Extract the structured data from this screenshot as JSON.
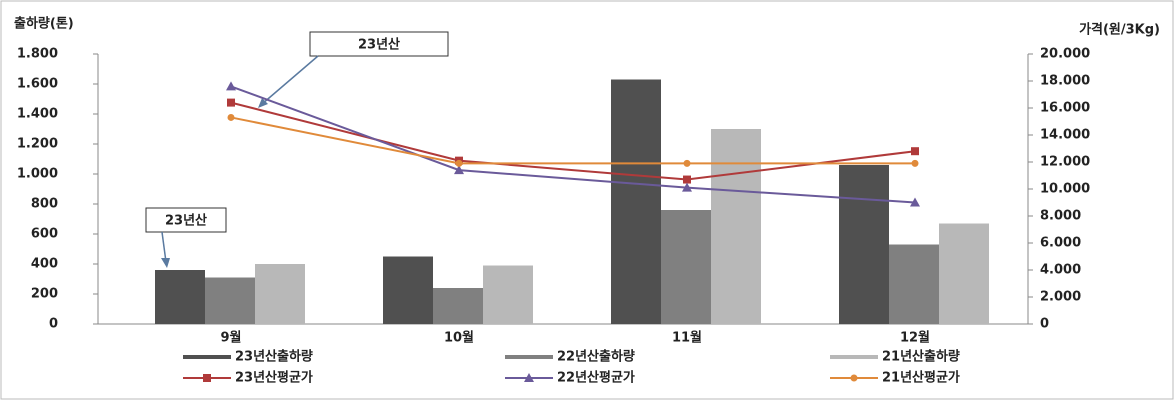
{
  "chart_data": {
    "type": "bar_line",
    "y_label": "출하량(톤)",
    "y2_label": "가격(원/3Kg)",
    "categories": [
      "9월",
      "10월",
      "11월",
      "12월"
    ],
    "series": [
      {
        "name": "23년산출하량",
        "color": "#505050",
        "type": "bar",
        "values": [
          360,
          450,
          1630,
          1060
        ]
      },
      {
        "name": "22년산출하량",
        "color": "#808080",
        "type": "bar",
        "values": [
          310,
          240,
          760,
          530
        ]
      },
      {
        "name": "21년산출하량",
        "color": "#b8b8b8",
        "type": "bar",
        "values": [
          400,
          390,
          1300,
          670
        ]
      },
      {
        "name": "23년산평균가",
        "color": "#b03a3a",
        "type": "line",
        "marker": "square",
        "axis": "y2",
        "values": [
          16400,
          12100,
          10700,
          12800
        ]
      },
      {
        "name": "22년산평균가",
        "color": "#6a5a9a",
        "type": "line",
        "marker": "triangle",
        "axis": "y2",
        "values": [
          17600,
          11400,
          10100,
          9000
        ]
      },
      {
        "name": "21년산평균가",
        "color": "#e08a3a",
        "type": "line",
        "marker": "circle",
        "axis": "y2",
        "values": [
          15300,
          11900,
          11900,
          11900
        ]
      }
    ],
    "ylim": [
      0,
      1800
    ],
    "yticks": [
      0,
      200,
      400,
      600,
      800,
      {
        "value": 1000,
        "label": "1.000"
      },
      {
        "value": 1200,
        "label": "1.200"
      },
      {
        "value": 1400,
        "label": "1.400"
      },
      {
        "value": 1600,
        "label": "1.600"
      },
      {
        "value": 1800,
        "label": "1.800"
      }
    ],
    "y2lim": [
      0,
      20000
    ],
    "y2ticks": [
      0,
      {
        "value": 2000,
        "label": "2.000"
      },
      {
        "value": 4000,
        "label": "4.000"
      },
      {
        "value": 6000,
        "label": "6.000"
      },
      {
        "value": 8000,
        "label": "8.000"
      },
      {
        "value": 10000,
        "label": "10.000"
      },
      {
        "value": 12000,
        "label": "12.000"
      },
      {
        "value": 14000,
        "label": "14.000"
      },
      {
        "value": 16000,
        "label": "16.000"
      },
      {
        "value": 18000,
        "label": "18.000"
      },
      {
        "value": 20000,
        "label": "20.000"
      }
    ],
    "annotations": [
      "23년산",
      "23년산"
    ]
  }
}
